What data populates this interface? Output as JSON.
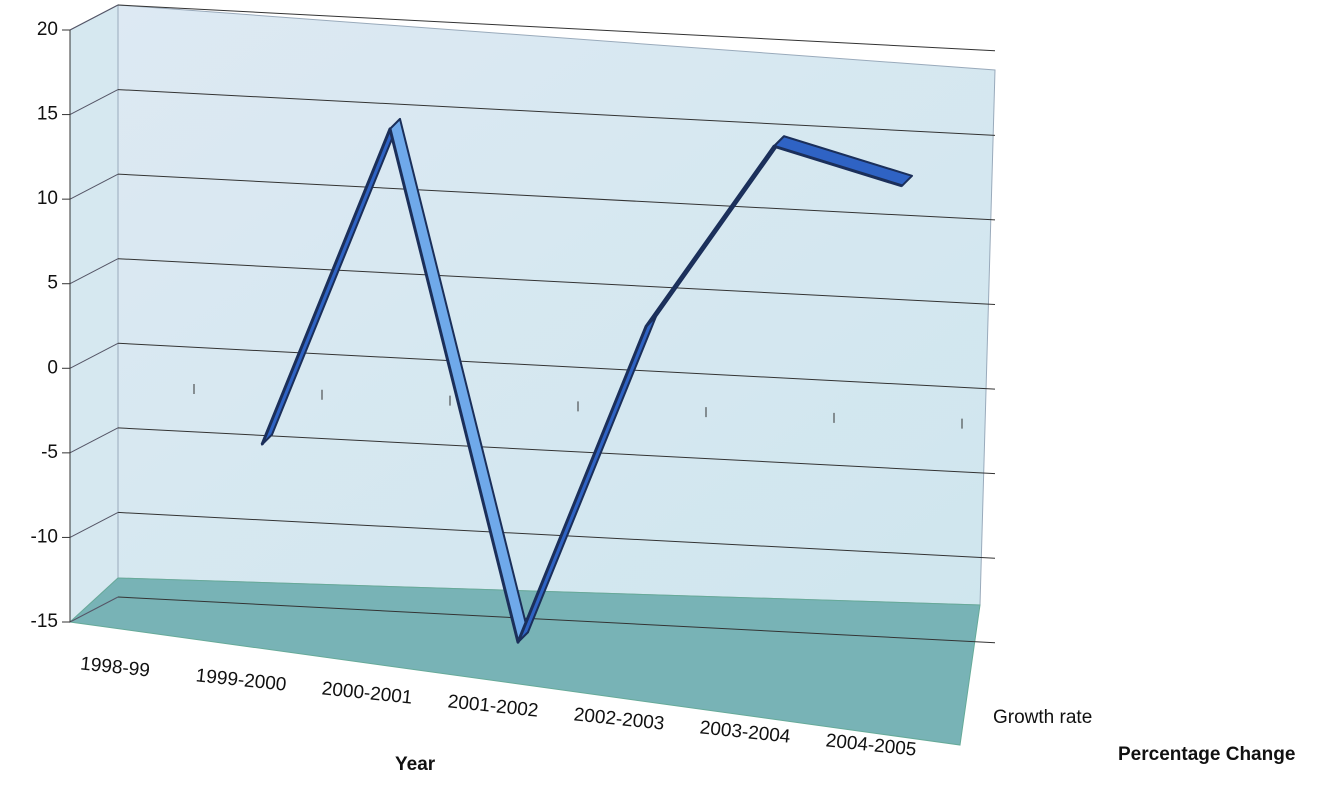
{
  "chart_data": {
    "type": "line",
    "categories": [
      "1998-99",
      "1999-2000",
      "2000-2001",
      "2001-2002",
      "2002-2003",
      "2003-2004",
      "2004-2005"
    ],
    "series": [
      {
        "name": "Growth rate",
        "color": "#2f63c4",
        "values": [
          null,
          -4,
          15,
          -15,
          4,
          15,
          13
        ]
      }
    ],
    "ylim": [
      -15,
      20
    ],
    "yticks": [
      -15,
      -10,
      -5,
      0,
      5,
      10,
      15,
      20
    ],
    "x_label": "Year",
    "z_label": "Percentage Change",
    "grid": true
  }
}
